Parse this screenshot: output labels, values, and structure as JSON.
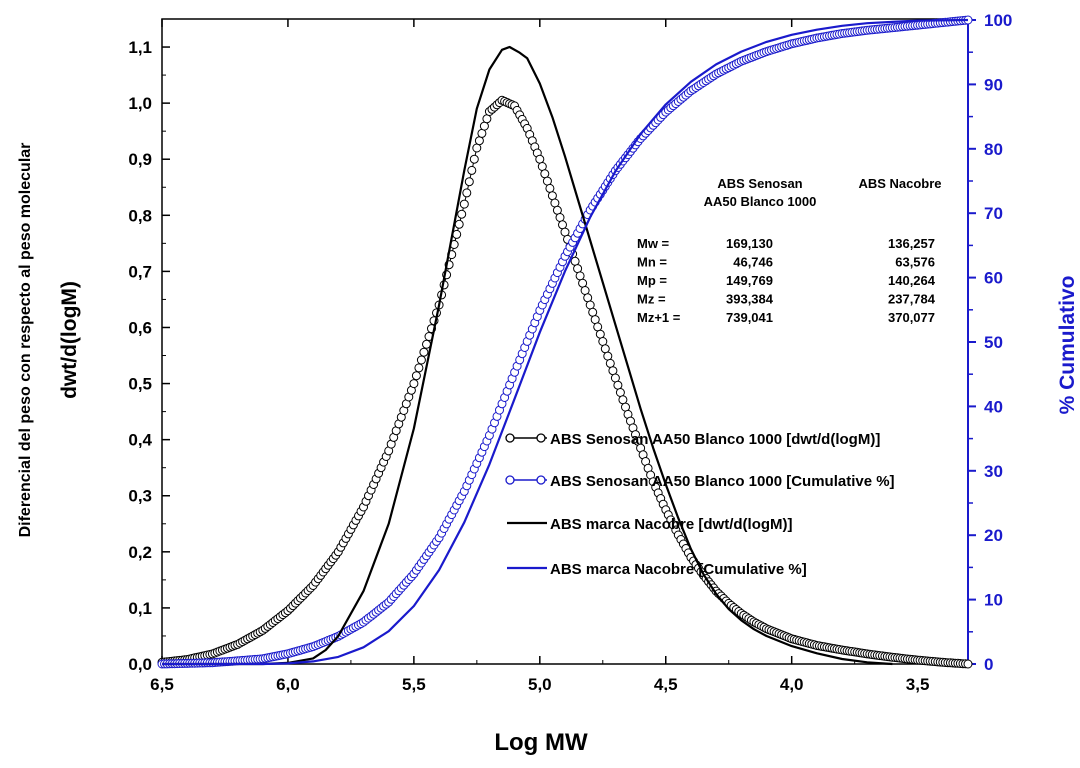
{
  "chart_data": {
    "type": "line",
    "xlabel": "Log MW",
    "ylabel_left_top": "Diferencial del peso con respecto al peso molecular",
    "ylabel_left_bottom": "dwt/d(logM)",
    "ylabel_right": "% Cumulativo",
    "x_reversed": true,
    "xlim": [
      6.5,
      3.3
    ],
    "ylim_left": [
      0.0,
      1.15
    ],
    "ylim_right": [
      0,
      100
    ],
    "x_ticks": [
      "6,5",
      "6,0",
      "5,5",
      "5,0",
      "4,5",
      "4,0",
      "3,5"
    ],
    "x_tick_values": [
      6.5,
      6.0,
      5.5,
      5.0,
      4.5,
      4.0,
      3.5
    ],
    "y_left_ticks": [
      "0,0",
      "0,1",
      "0,2",
      "0,3",
      "0,4",
      "0,5",
      "0,6",
      "0,7",
      "0,8",
      "0,9",
      "1,0",
      "1,1"
    ],
    "y_left_tick_values": [
      0.0,
      0.1,
      0.2,
      0.3,
      0.4,
      0.5,
      0.6,
      0.7,
      0.8,
      0.9,
      1.0,
      1.1
    ],
    "y_right_ticks": [
      "0",
      "10",
      "20",
      "30",
      "40",
      "50",
      "60",
      "70",
      "80",
      "90",
      "100"
    ],
    "y_right_tick_values": [
      0,
      10,
      20,
      30,
      40,
      50,
      60,
      70,
      80,
      90,
      100
    ],
    "grid": false,
    "legend_position": "center-right",
    "series": [
      {
        "name": "ABS Senosan AA50 Blanco 1000  [dwt/d(logM)]",
        "axis": "left",
        "color": "#000000",
        "marker": "open-circle",
        "x": [
          6.5,
          6.4,
          6.3,
          6.2,
          6.1,
          6.0,
          5.9,
          5.8,
          5.7,
          5.6,
          5.5,
          5.4,
          5.3,
          5.25,
          5.2,
          5.15,
          5.1,
          5.05,
          5.0,
          4.95,
          4.9,
          4.85,
          4.8,
          4.75,
          4.7,
          4.65,
          4.6,
          4.55,
          4.5,
          4.45,
          4.4,
          4.35,
          4.3,
          4.25,
          4.2,
          4.15,
          4.1,
          4.0,
          3.9,
          3.8,
          3.7,
          3.6,
          3.5,
          3.4,
          3.3
        ],
        "y": [
          0.003,
          0.008,
          0.018,
          0.035,
          0.06,
          0.095,
          0.14,
          0.2,
          0.28,
          0.38,
          0.5,
          0.64,
          0.82,
          0.92,
          0.985,
          1.005,
          0.995,
          0.955,
          0.9,
          0.835,
          0.77,
          0.705,
          0.64,
          0.575,
          0.51,
          0.445,
          0.385,
          0.325,
          0.275,
          0.23,
          0.19,
          0.158,
          0.13,
          0.108,
          0.09,
          0.075,
          0.063,
          0.045,
          0.033,
          0.025,
          0.018,
          0.012,
          0.007,
          0.003,
          0.0
        ]
      },
      {
        "name": "ABS Senosan AA50 Blanco 1000  [Cumulative %]",
        "axis": "right",
        "color": "#1a1acc",
        "marker": "open-circle",
        "x": [
          6.5,
          6.3,
          6.1,
          6.0,
          5.9,
          5.8,
          5.7,
          5.6,
          5.5,
          5.4,
          5.3,
          5.2,
          5.1,
          5.0,
          4.9,
          4.8,
          4.7,
          4.6,
          4.5,
          4.4,
          4.3,
          4.2,
          4.1,
          4.0,
          3.9,
          3.8,
          3.7,
          3.6,
          3.5,
          3.4,
          3.3
        ],
        "y": [
          0,
          0.2,
          0.8,
          1.6,
          2.7,
          4.3,
          6.5,
          9.6,
          14.0,
          19.6,
          26.8,
          35.5,
          45.3,
          54.9,
          63.3,
          70.5,
          76.6,
          81.6,
          85.7,
          89.0,
          91.6,
          93.6,
          95.1,
          96.3,
          97.2,
          97.9,
          98.4,
          98.8,
          99.2,
          99.6,
          100
        ]
      },
      {
        "name": "ABS marca Nacobre  [dwt/d(logM)]",
        "axis": "left",
        "color": "#000000",
        "marker": "none",
        "x": [
          6.5,
          6.3,
          6.1,
          6.0,
          5.9,
          5.85,
          5.8,
          5.7,
          5.6,
          5.5,
          5.4,
          5.3,
          5.25,
          5.2,
          5.15,
          5.12,
          5.08,
          5.05,
          5.0,
          4.95,
          4.9,
          4.85,
          4.8,
          4.75,
          4.7,
          4.65,
          4.6,
          4.55,
          4.5,
          4.45,
          4.4,
          4.35,
          4.3,
          4.25,
          4.2,
          4.15,
          4.1,
          4.0,
          3.9,
          3.8,
          3.7,
          3.6
        ],
        "y": [
          0,
          0,
          0,
          0.002,
          0.01,
          0.025,
          0.05,
          0.13,
          0.25,
          0.42,
          0.64,
          0.88,
          0.99,
          1.06,
          1.095,
          1.1,
          1.09,
          1.08,
          1.035,
          0.975,
          0.905,
          0.83,
          0.755,
          0.68,
          0.605,
          0.53,
          0.455,
          0.385,
          0.32,
          0.26,
          0.205,
          0.16,
          0.125,
          0.098,
          0.078,
          0.062,
          0.05,
          0.032,
          0.019,
          0.009,
          0.003,
          0.0
        ]
      },
      {
        "name": "ABS marca Nacobre  [Cumulative %]",
        "axis": "right",
        "color": "#1a1acc",
        "marker": "none",
        "x": [
          6.5,
          6.1,
          6.0,
          5.9,
          5.8,
          5.7,
          5.6,
          5.5,
          5.4,
          5.3,
          5.2,
          5.1,
          5.0,
          4.9,
          4.8,
          4.7,
          4.6,
          4.5,
          4.4,
          4.3,
          4.2,
          4.1,
          4.0,
          3.9,
          3.8,
          3.7,
          3.6,
          3.5,
          3.3
        ],
        "y": [
          0,
          0,
          0.1,
          0.4,
          1.1,
          2.6,
          5.1,
          9.0,
          14.6,
          22.0,
          31.0,
          41.2,
          51.5,
          61.0,
          69.4,
          76.5,
          82.3,
          86.9,
          90.4,
          93.1,
          95.1,
          96.6,
          97.7,
          98.5,
          99.1,
          99.5,
          99.7,
          99.9,
          100
        ]
      }
    ],
    "table": {
      "col1_header": [
        "ABS Senosan",
        "AA50 Blanco 1000"
      ],
      "col2_header": "ABS Nacobre",
      "rows": [
        {
          "label": "Mw =",
          "v1": "169,130",
          "v2": "136,257"
        },
        {
          "label": "Mn =",
          "v1": "46,746",
          "v2": "63,576"
        },
        {
          "label": "Mp =",
          "v1": "149,769",
          "v2": "140,264"
        },
        {
          "label": "Mz =",
          "v1": "393,384",
          "v2": "237,784"
        },
        {
          "label": "Mz+1 =",
          "v1": "739,041",
          "v2": "370,077"
        }
      ]
    }
  }
}
